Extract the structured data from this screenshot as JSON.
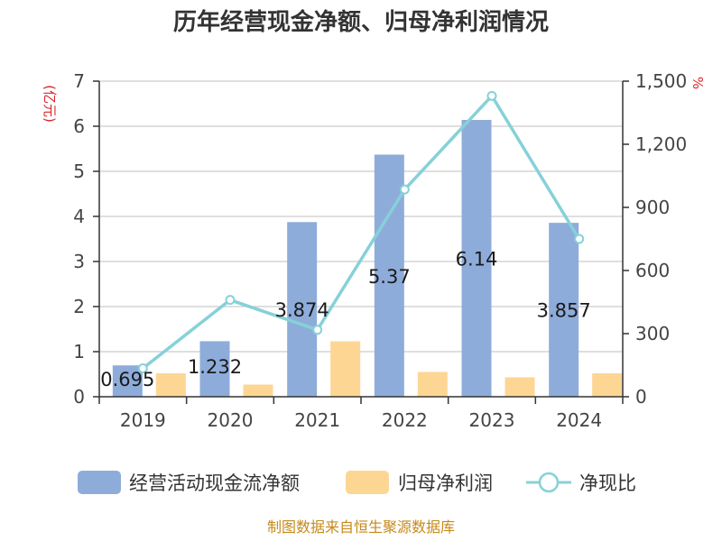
{
  "chart_data": {
    "type": "bar",
    "title": "历年经营现金净额、归母净利润情况",
    "categories": [
      "2019",
      "2020",
      "2021",
      "2022",
      "2023",
      "2024"
    ],
    "y_left": {
      "unit": "(亿元)",
      "ylim": [
        0,
        7
      ],
      "ticks": [
        "0",
        "1",
        "2",
        "3",
        "4",
        "5",
        "6",
        "7"
      ]
    },
    "y_right": {
      "unit": "%",
      "ylim": [
        0,
        1500
      ],
      "ticks": [
        "0",
        "300",
        "600",
        "900",
        "1,200",
        "1,500"
      ]
    },
    "series": [
      {
        "name": "经营活动现金流净额",
        "kind": "bar",
        "axis": "left",
        "color": "#8eacda",
        "values": [
          0.695,
          1.232,
          3.874,
          5.37,
          6.14,
          3.857
        ],
        "labels": [
          "0.695",
          "1.232",
          "3.874",
          "5.37",
          "6.14",
          "3.857"
        ]
      },
      {
        "name": "归母净利润",
        "kind": "bar",
        "axis": "left",
        "color": "#fdd694",
        "values": [
          0.52,
          0.27,
          1.23,
          0.55,
          0.43,
          0.52
        ]
      },
      {
        "name": "净现比",
        "kind": "line",
        "axis": "right",
        "color": "#86d1d8",
        "values": [
          135,
          460,
          318,
          985,
          1430,
          750
        ]
      }
    ],
    "grid": true,
    "legend": "bottom"
  },
  "source_text": "制图数据来自恒生聚源数据库"
}
